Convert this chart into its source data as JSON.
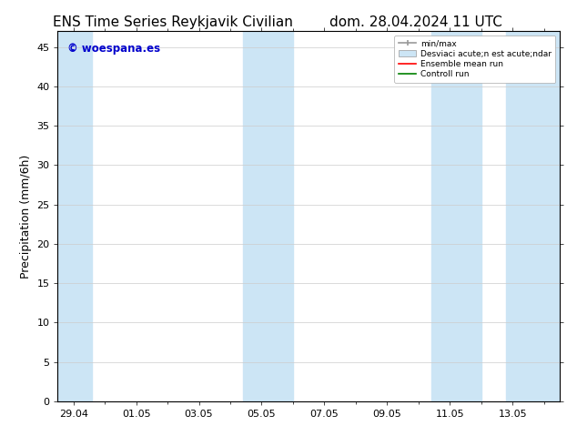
{
  "title_left": "ENS Time Series Reykjavik Civilian",
  "title_right": "dom. 28.04.2024 11 UTC",
  "ylabel": "Precipitation (mm/6h)",
  "background_color": "#ffffff",
  "plot_bg_color": "#ffffff",
  "ylim": [
    0,
    47
  ],
  "yticks": [
    0,
    5,
    10,
    15,
    20,
    25,
    30,
    35,
    40,
    45
  ],
  "xtick_labels": [
    "29.04",
    "01.05",
    "03.05",
    "05.05",
    "07.05",
    "09.05",
    "11.05",
    "13.05"
  ],
  "x_tick_positions": [
    0,
    2,
    4,
    6,
    8,
    10,
    12,
    14
  ],
  "xlim": [
    -0.5,
    15.5
  ],
  "shade_color": "#cce5f5",
  "shade_regions": [
    [
      -0.5,
      0.6
    ],
    [
      5.4,
      7.0
    ],
    [
      11.4,
      13.0
    ],
    [
      13.8,
      15.5
    ]
  ],
  "watermark": "© woespana.es",
  "watermark_color": "#0000cc",
  "title_fontsize": 11,
  "tick_fontsize": 8,
  "ylabel_fontsize": 9,
  "legend_label_minmax": "min/max",
  "legend_label_std": "Desviaci acute;n est acute;ndar",
  "legend_label_mean": "Ensemble mean run",
  "legend_label_ctrl": "Controll run",
  "legend_color_minmax": "#999999",
  "legend_color_std": "#cce5f5",
  "legend_color_mean": "#ff0000",
  "legend_color_ctrl": "#008000"
}
